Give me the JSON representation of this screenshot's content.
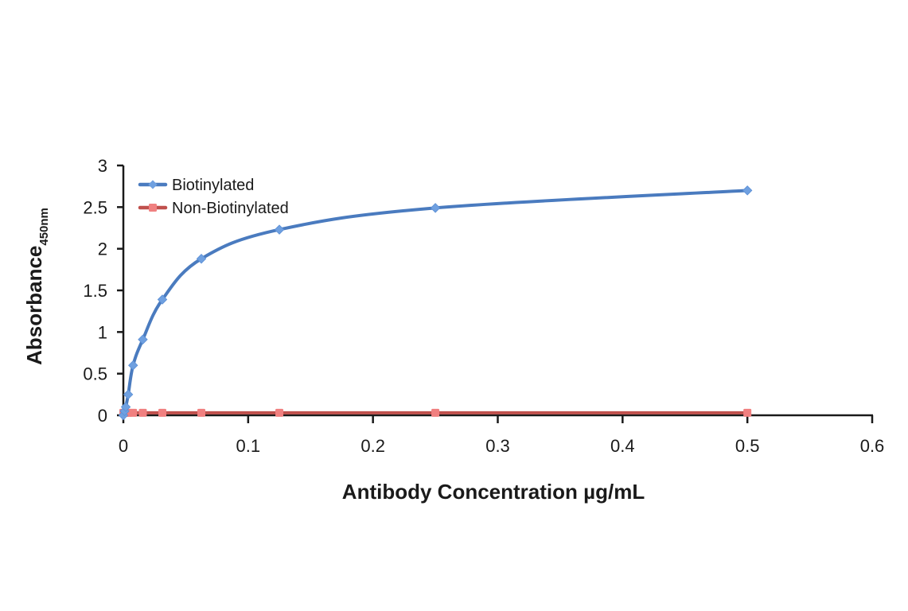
{
  "chart_data": {
    "type": "line",
    "title": "",
    "xlabel": "Antibody Concentration µg/mL",
    "ylabel": "Absorbance",
    "ylabel_subscript": "450nm",
    "xlim": [
      0,
      0.6
    ],
    "ylim": [
      0,
      3
    ],
    "x_ticks": [
      "0",
      "0.1",
      "0.2",
      "0.3",
      "0.4",
      "0.5",
      "0.6"
    ],
    "y_ticks": [
      "0",
      "0.5",
      "1",
      "1.5",
      "2",
      "2.5",
      "3"
    ],
    "grid": false,
    "legend_position": "upper-left",
    "series": [
      {
        "name": "Biotinylated",
        "color": "#4a7bbf",
        "marker": "diamond",
        "marker_color": "#6fa0e0",
        "x": [
          0,
          0.00098,
          0.00195,
          0.0039,
          0.0078,
          0.0156,
          0.03125,
          0.0625,
          0.125,
          0.25,
          0.5
        ],
        "values": [
          0.0,
          0.05,
          0.1,
          0.25,
          0.6,
          0.91,
          1.39,
          1.88,
          2.23,
          2.49,
          2.7
        ]
      },
      {
        "name": "Non-Biotinylated",
        "color": "#c0504d",
        "marker": "square",
        "marker_color": "#f08080",
        "x": [
          0,
          0.00098,
          0.00195,
          0.0039,
          0.0078,
          0.0156,
          0.03125,
          0.0625,
          0.125,
          0.25,
          0.5
        ],
        "values": [
          0.03,
          0.03,
          0.03,
          0.03,
          0.03,
          0.03,
          0.03,
          0.03,
          0.03,
          0.03,
          0.03
        ]
      }
    ]
  }
}
